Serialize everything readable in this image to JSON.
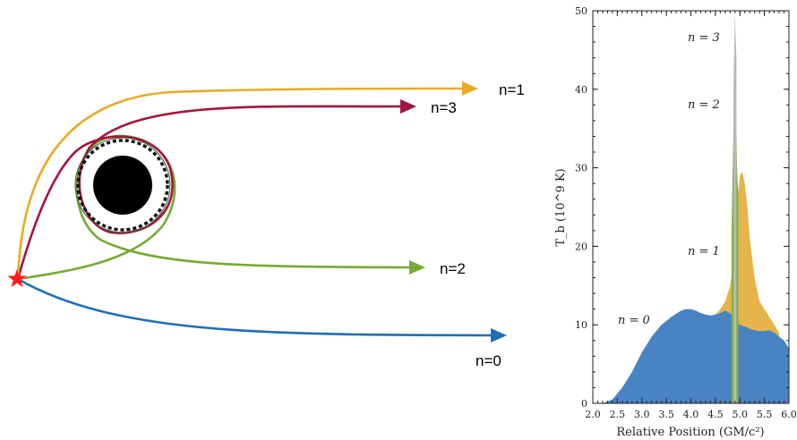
{
  "diagram": {
    "orbits": [
      {
        "id": "n1",
        "label": "n=1",
        "color": "#e6ac27"
      },
      {
        "id": "n3",
        "label": "n=3",
        "color": "#a3163b"
      },
      {
        "id": "n2",
        "label": "n=2",
        "color": "#77aa33"
      },
      {
        "id": "n0",
        "label": "n=0",
        "color": "#1f6fb5"
      }
    ],
    "source_color": "#ff1a1a",
    "black_hole_color": "#000000"
  },
  "chart": {
    "ylabel": "T_b (10^9 K)",
    "xlabel": "Relative Position (GM/c²)",
    "xticks": [
      "2.0",
      "2.5",
      "3.0",
      "3.5",
      "4.0",
      "4.5",
      "5.0",
      "5.5",
      "6.0"
    ],
    "yticks": [
      "0",
      "10",
      "20",
      "30",
      "40",
      "50"
    ],
    "annotations": [
      "n = 3",
      "n = 2",
      "n = 1",
      "n = 0"
    ],
    "colors": {
      "n0": "#4a83c4",
      "n1": "#e6b44a",
      "n2": "#7db042",
      "n3": "#b8b8b8"
    }
  },
  "chart_data": {
    "type": "area",
    "xlim": [
      2.0,
      6.0
    ],
    "ylim": [
      0,
      50
    ],
    "xlabel": "Relative Position (GM/c²)",
    "ylabel": "T_b (10^9 K)",
    "series": [
      {
        "name": "n = 0",
        "x": [
          2.0,
          2.2,
          2.4,
          2.6,
          2.8,
          3.0,
          3.2,
          3.4,
          3.6,
          3.8,
          3.9,
          4.0,
          4.1,
          4.2,
          4.3,
          4.4,
          4.5,
          4.6,
          4.7,
          4.8,
          4.9,
          5.0,
          5.1,
          5.2,
          5.3,
          5.4,
          5.5,
          5.6,
          5.7,
          5.8,
          5.9,
          6.0
        ],
        "values": [
          0,
          0,
          0.5,
          2,
          4,
          6.5,
          8.5,
          10,
          11,
          11.8,
          12,
          12,
          11.8,
          11.5,
          11.3,
          11.2,
          11.3,
          11.5,
          11.8,
          11.5,
          10.5,
          10,
          9.8,
          9.5,
          9.3,
          9.2,
          9.2,
          9.3,
          9.0,
          8.5,
          8.0,
          7.0
        ]
      },
      {
        "name": "n = 1",
        "x": [
          4.5,
          4.6,
          4.7,
          4.8,
          4.85,
          4.9,
          4.95,
          5.0,
          5.05,
          5.1,
          5.15,
          5.2,
          5.3,
          5.4,
          5.5,
          5.6,
          5.7,
          5.8
        ],
        "values": [
          11.3,
          12,
          13,
          15,
          17,
          22,
          26,
          29,
          29.5,
          28,
          25,
          21,
          16,
          13,
          12,
          11,
          10,
          9
        ]
      },
      {
        "name": "n = 2",
        "x": [
          4.83,
          4.86,
          4.88,
          4.9,
          4.92,
          4.94,
          4.97
        ],
        "values": [
          22,
          32,
          40,
          46,
          38,
          30,
          26
        ]
      },
      {
        "name": "n = 3",
        "x": [
          4.87,
          4.89,
          4.9,
          4.91,
          4.93
        ],
        "values": [
          40,
          47,
          50,
          47,
          44
        ]
      }
    ]
  }
}
